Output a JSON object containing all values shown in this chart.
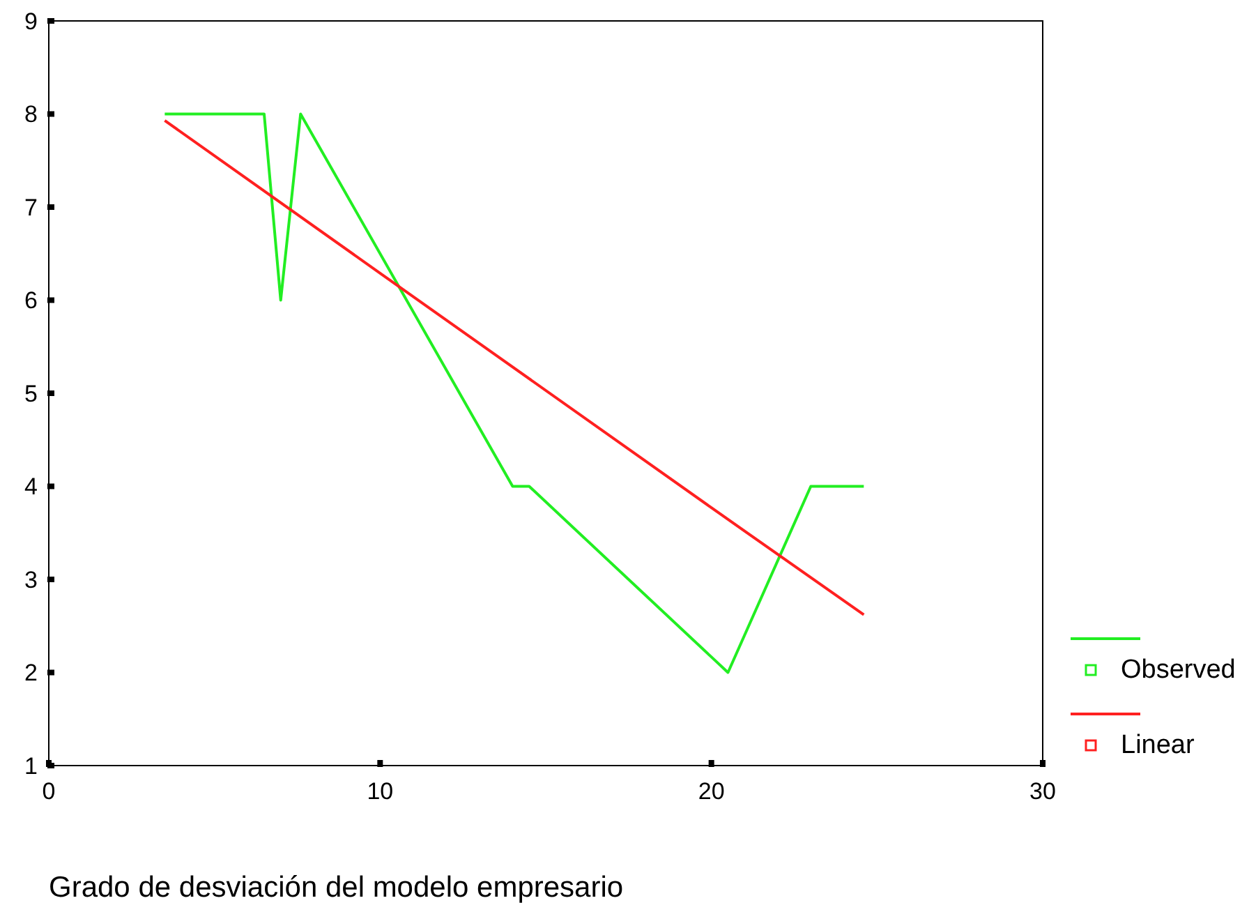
{
  "chart_data": {
    "type": "line",
    "xlabel": "Grado de desviación del modelo empresario",
    "xlim": [
      0,
      30
    ],
    "xticks": [
      0,
      10,
      20,
      30
    ],
    "ylim": [
      1,
      9
    ],
    "yticks": [
      1,
      2,
      3,
      4,
      5,
      6,
      7,
      8,
      9
    ],
    "grid": false,
    "legend": "right",
    "series": [
      {
        "name": "Observed",
        "color": "#22ee22",
        "x": [
          3.5,
          6.5,
          7,
          7.6,
          14,
          14.5,
          20.5,
          23,
          24.6
        ],
        "values": [
          8,
          8,
          6,
          8,
          4,
          4,
          2,
          4,
          4
        ]
      },
      {
        "name": "Linear",
        "color": "#ff2020",
        "x": [
          3.5,
          10,
          20,
          24.6
        ],
        "values": [
          7.93,
          6.29,
          3.77,
          2.62
        ]
      }
    ]
  }
}
